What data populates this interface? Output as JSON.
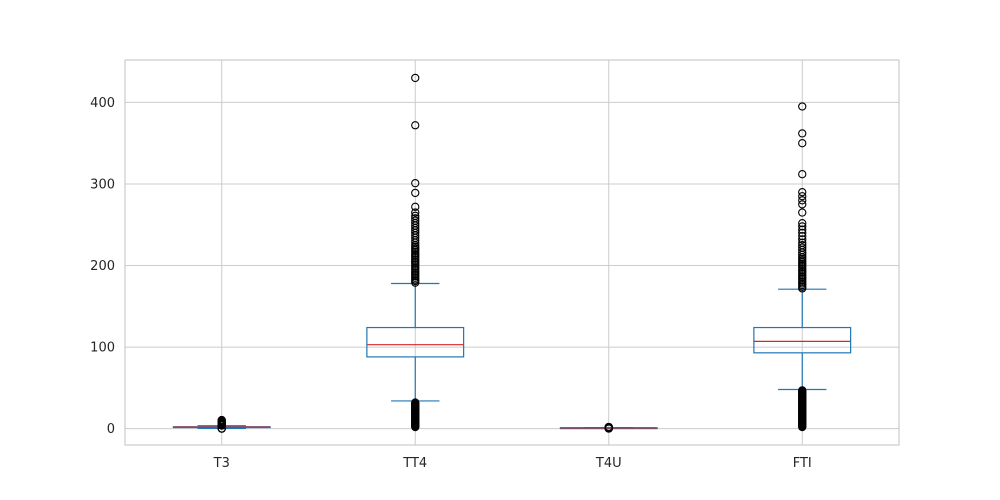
{
  "chart_data": {
    "type": "box",
    "title": "",
    "xlabel": "",
    "ylabel": "",
    "ylim": [
      -20,
      452
    ],
    "yticks": [
      0,
      100,
      200,
      300,
      400
    ],
    "grid": true,
    "colors": {
      "box": "#1f77b4",
      "median": "#d62728",
      "grid": "#cccccc",
      "axes": "#cccccc",
      "flier": "#000000"
    },
    "categories": [
      "T3",
      "TT4",
      "T4U",
      "FTI"
    ],
    "boxes": [
      {
        "name": "T3",
        "whisker_low": 0.3,
        "q1": 1.6,
        "median": 2.0,
        "q3": 2.4,
        "whisker_high": 3.6,
        "fliers": [
          0.05,
          0.1,
          0.2,
          3.8,
          4.0,
          4.2,
          4.5,
          4.8,
          5.0,
          5.3,
          5.7,
          6.0,
          6.5,
          7.0,
          7.6,
          8.2,
          8.5,
          9.0,
          10.0,
          10.6
        ]
      },
      {
        "name": "TT4",
        "whisker_low": 34,
        "q1": 88,
        "median": 103,
        "q3": 124,
        "whisker_high": 178,
        "fliers": [
          2,
          3,
          4,
          5,
          6,
          7,
          8,
          9,
          10,
          11,
          12,
          13,
          14,
          15,
          16,
          17,
          18,
          19,
          20,
          21,
          22,
          23,
          24,
          25,
          26,
          27,
          28,
          29,
          30,
          31,
          32,
          179,
          181,
          183,
          185,
          187,
          189,
          191,
          193,
          195,
          197,
          199,
          201,
          203,
          205,
          207,
          209,
          211,
          213,
          215,
          217,
          219,
          221,
          223,
          225,
          228,
          231,
          234,
          237,
          240,
          243,
          246,
          249,
          252,
          255,
          258,
          261,
          265,
          272,
          289,
          301,
          372,
          430
        ]
      },
      {
        "name": "T4U",
        "whisker_low": 0.5,
        "q1": 0.88,
        "median": 0.98,
        "q3": 1.08,
        "whisker_high": 1.4,
        "fliers": [
          0.2,
          0.25,
          0.3,
          0.4,
          1.5,
          1.6,
          1.7,
          1.8,
          1.9,
          2.0,
          2.1
        ]
      },
      {
        "name": "FTI",
        "whisker_low": 48,
        "q1": 93,
        "median": 107,
        "q3": 124,
        "whisker_high": 171,
        "fliers": [
          2,
          3,
          4,
          5,
          6,
          7,
          8,
          9,
          10,
          11,
          12,
          13,
          14,
          15,
          16,
          17,
          18,
          19,
          20,
          21,
          22,
          23,
          24,
          25,
          26,
          27,
          28,
          29,
          30,
          31,
          32,
          33,
          34,
          35,
          36,
          37,
          38,
          39,
          40,
          41,
          42,
          43,
          44,
          45,
          46,
          47,
          172,
          174,
          176,
          178,
          180,
          182,
          184,
          186,
          188,
          190,
          192,
          194,
          196,
          198,
          200,
          202,
          204,
          206,
          208,
          210,
          213,
          216,
          219,
          222,
          225,
          228,
          232,
          236,
          240,
          244,
          248,
          252,
          265,
          275,
          280,
          285,
          290,
          312,
          350,
          362,
          395
        ]
      }
    ]
  }
}
